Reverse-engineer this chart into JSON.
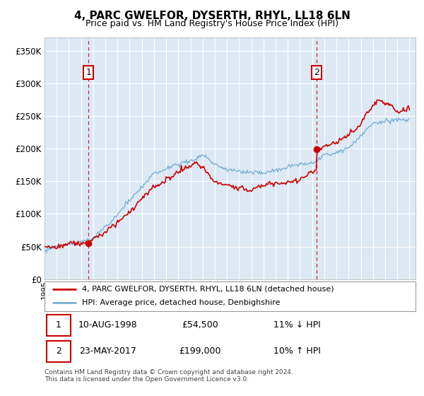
{
  "title": "4, PARC GWELFOR, DYSERTH, RHYL, LL18 6LN",
  "subtitle": "Price paid vs. HM Land Registry's House Price Index (HPI)",
  "legend_entry1": "4, PARC GWELFOR, DYSERTH, RHYL, LL18 6LN (detached house)",
  "legend_entry2": "HPI: Average price, detached house, Denbighshire",
  "annotation1_date": "10-AUG-1998",
  "annotation1_price": "£54,500",
  "annotation1_hpi": "11% ↓ HPI",
  "annotation2_date": "23-MAY-2017",
  "annotation2_price": "£199,000",
  "annotation2_hpi": "10% ↑ HPI",
  "footer": "Contains HM Land Registry data © Crown copyright and database right 2024.\nThis data is licensed under the Open Government Licence v3.0.",
  "sale1_year": 1998.62,
  "sale1_value": 54500,
  "sale2_year": 2017.39,
  "sale2_value": 199000,
  "hpi_color": "#7ab0d4",
  "price_color": "#cc0000",
  "bg_color": "#dce9f5",
  "ylim_max": 370000,
  "ylim_min": 0,
  "xlim_min": 1995,
  "xlim_max": 2025.5
}
